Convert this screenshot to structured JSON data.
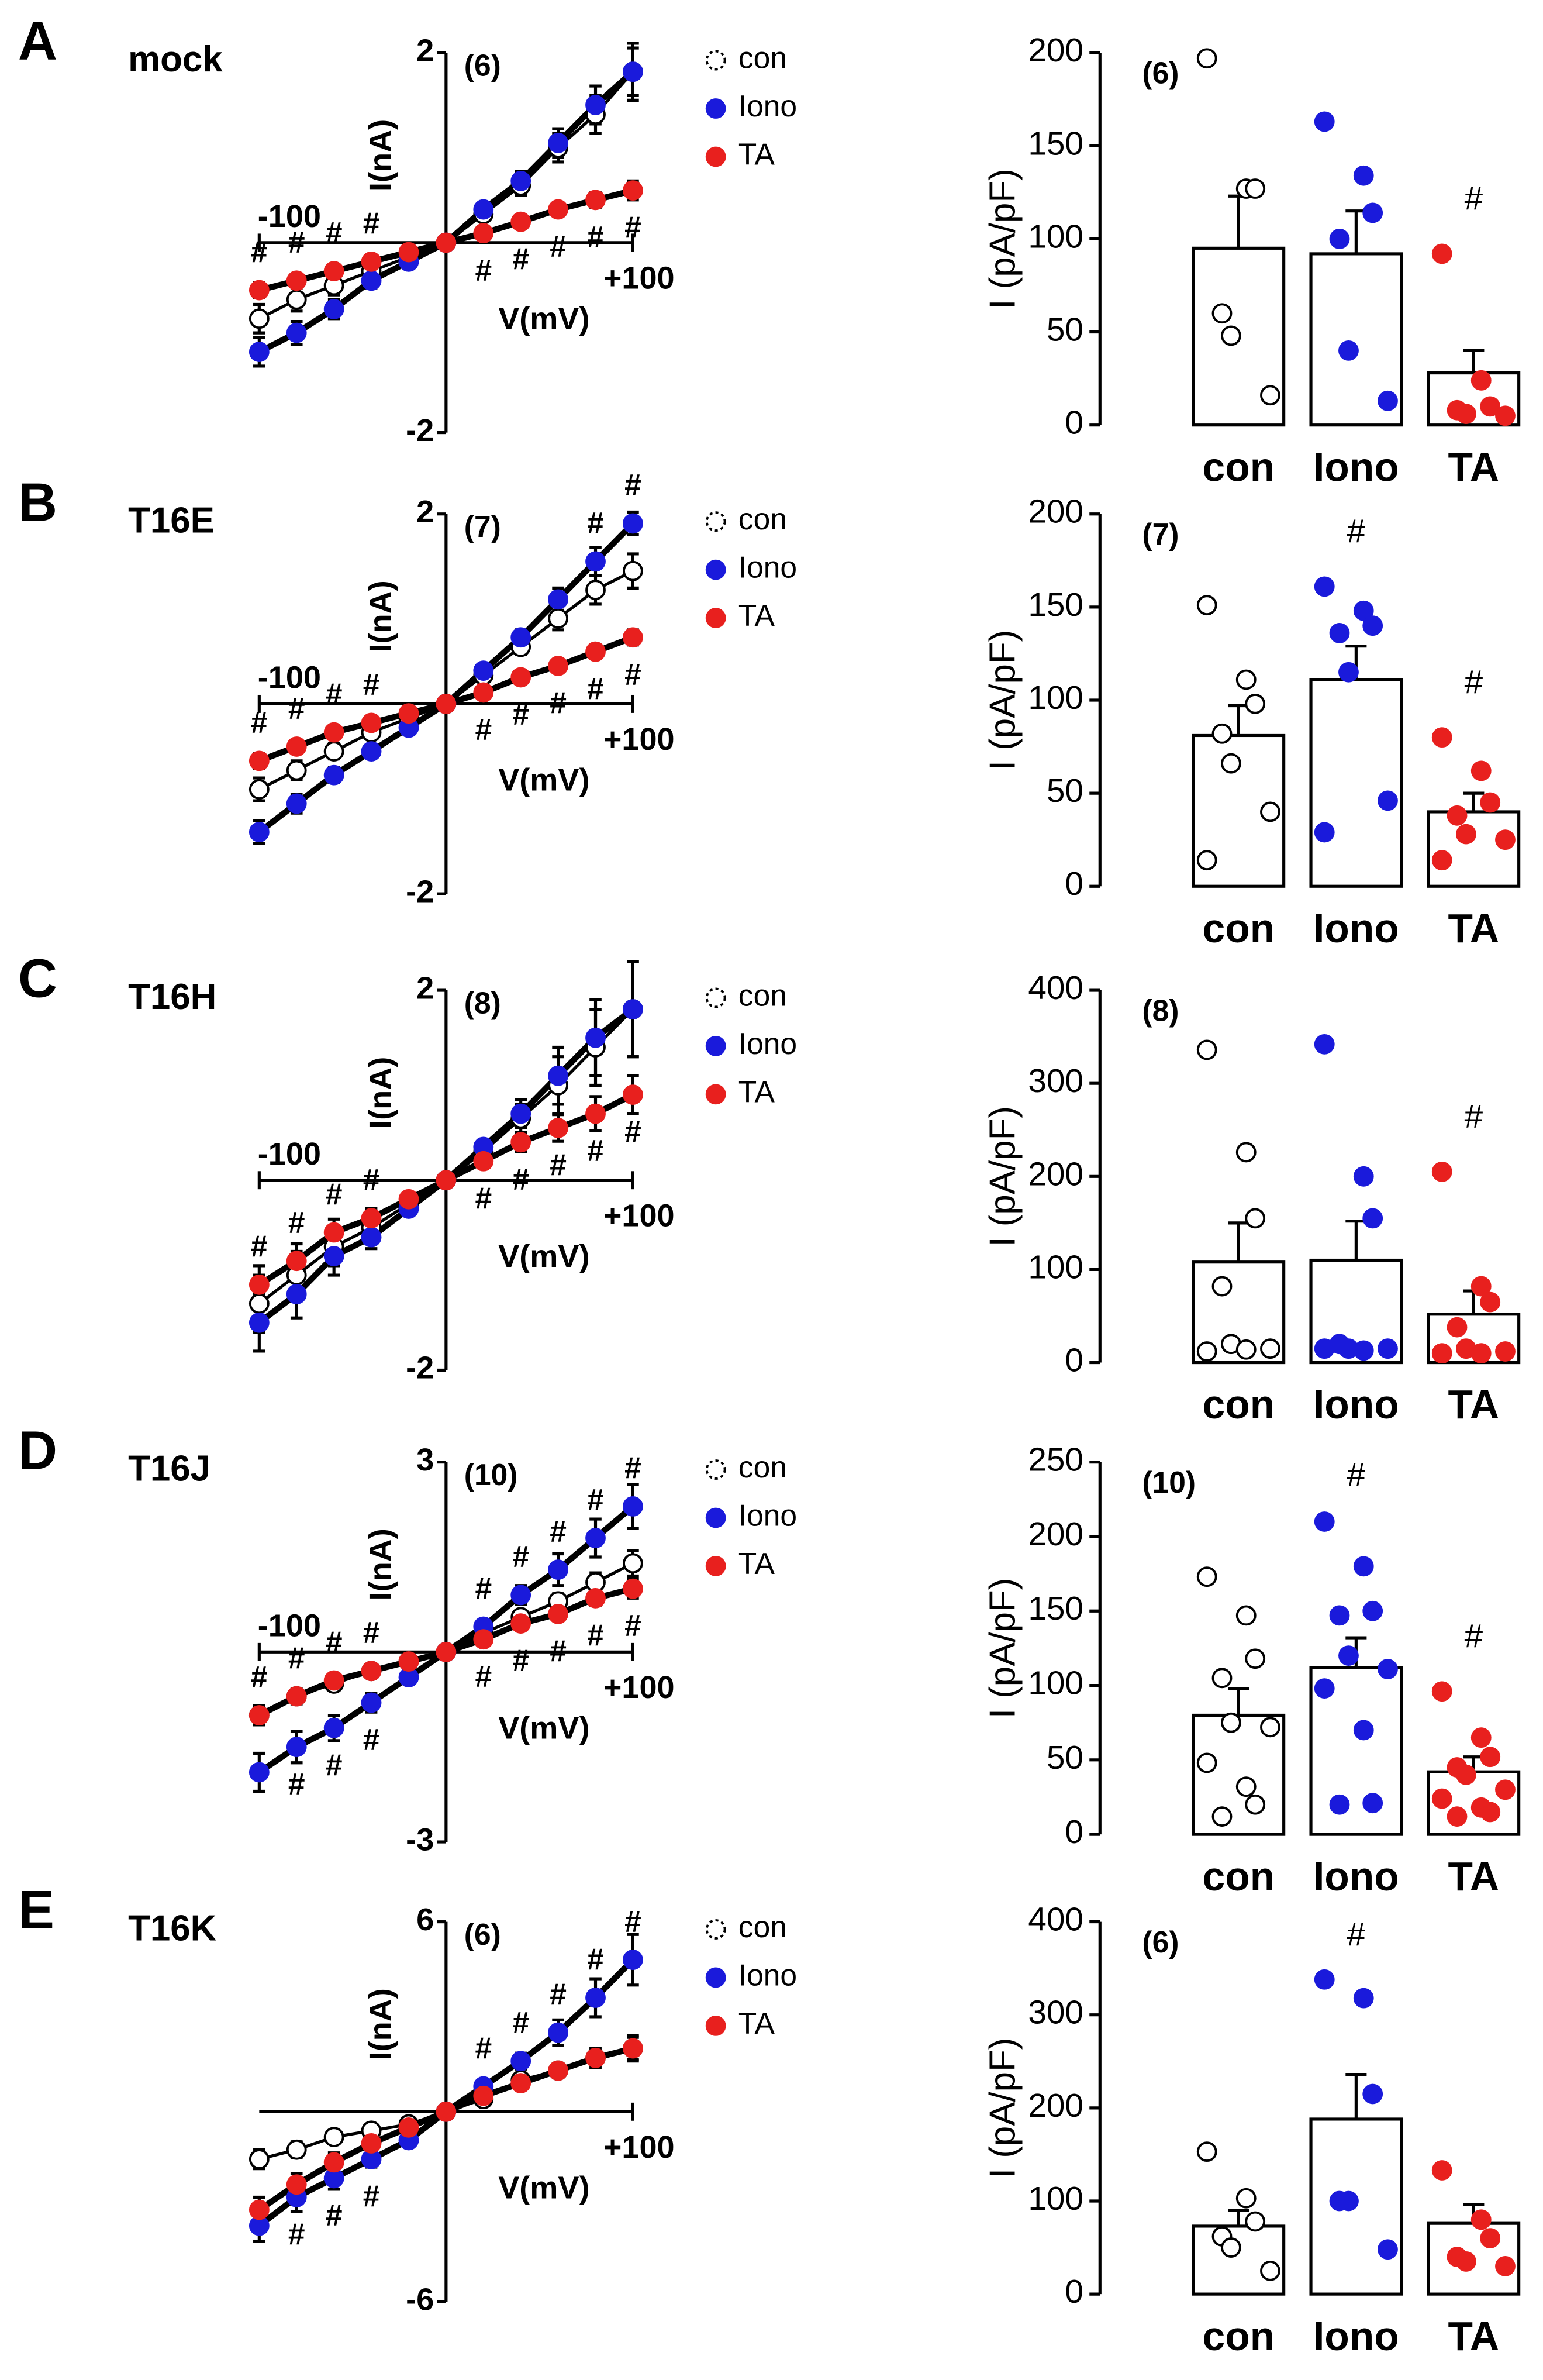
{
  "chart_data": [
    {
      "type": "line",
      "panel": "A",
      "title": "mock",
      "annotation": "(6)",
      "xlabel": "V(mV)",
      "ylabel": "I(nA)",
      "sig_label": "#",
      "x": [
        -100,
        -80,
        -60,
        -40,
        -20,
        0,
        20,
        40,
        60,
        80,
        100
      ],
      "xlim": [
        -100,
        100
      ],
      "xticks": [
        -100,
        {
          "value": 100,
          "label": "+100"
        }
      ],
      "ylim": [
        -2,
        2
      ],
      "yticks": [
        -2,
        2
      ],
      "series": [
        {
          "name": "con",
          "color": "#ffffff",
          "values": [
            -0.8,
            -0.6,
            -0.45,
            -0.3,
            -0.15,
            0,
            0.3,
            0.6,
            1.0,
            1.35,
            1.8
          ],
          "errors": [
            0.15,
            0.12,
            0.1,
            0.08,
            0.05,
            0.03,
            0.06,
            0.1,
            0.15,
            0.2,
            0.3
          ],
          "sig": []
        },
        {
          "name": "Iono",
          "color": "#1a1adb",
          "values": [
            -1.15,
            -0.95,
            -0.7,
            -0.4,
            -0.2,
            0,
            0.35,
            0.65,
            1.05,
            1.45,
            1.8
          ],
          "errors": [
            0.15,
            0.12,
            0.1,
            0.08,
            0.05,
            0.03,
            0.06,
            0.1,
            0.15,
            0.2,
            0.25
          ],
          "sig": []
        },
        {
          "name": "TA",
          "color": "#e8201e",
          "values": [
            -0.5,
            -0.4,
            -0.3,
            -0.2,
            -0.1,
            0,
            0.1,
            0.22,
            0.35,
            0.45,
            0.55
          ],
          "errors": [
            0.08,
            0.07,
            0.06,
            0.05,
            0.04,
            0.03,
            0.04,
            0.05,
            0.07,
            0.08,
            0.1
          ],
          "sig": [
            -100,
            -80,
            -60,
            -40,
            20,
            40,
            60,
            80,
            100
          ]
        }
      ]
    },
    {
      "type": "bar",
      "annotation": "(6)",
      "ylabel": "I (pA/pF)",
      "sig_label": "#",
      "categories": [
        "con",
        "Iono",
        "TA"
      ],
      "colors": [
        "#ffffff",
        "#1a1adb",
        "#e8201e"
      ],
      "values": [
        95,
        92,
        28
      ],
      "errors": [
        28,
        23,
        12
      ],
      "points": [
        [
          197,
          127,
          127,
          60,
          48,
          16
        ],
        [
          163,
          134,
          114,
          100,
          40,
          13
        ],
        [
          92,
          24,
          10,
          8,
          6,
          5
        ]
      ],
      "sig": [
        2
      ],
      "ylim": [
        0,
        200
      ],
      "yticks": [
        0,
        50,
        100,
        150,
        200
      ]
    },
    {
      "type": "line",
      "panel": "B",
      "title": "T16E",
      "annotation": "(7)",
      "xlabel": "V(mV)",
      "ylabel": "I(nA)",
      "sig_label": "#",
      "x": [
        -100,
        -80,
        -60,
        -40,
        -20,
        0,
        20,
        40,
        60,
        80,
        100
      ],
      "xlim": [
        -100,
        100
      ],
      "xticks": [
        -100,
        {
          "value": 100,
          "label": "+100"
        }
      ],
      "ylim": [
        -2,
        2
      ],
      "yticks": [
        -2,
        2
      ],
      "series": [
        {
          "name": "con",
          "color": "#ffffff",
          "values": [
            -0.9,
            -0.7,
            -0.5,
            -0.3,
            -0.15,
            0,
            0.3,
            0.6,
            0.9,
            1.2,
            1.4
          ],
          "errors": [
            0.12,
            0.1,
            0.08,
            0.07,
            0.05,
            0.03,
            0.06,
            0.08,
            0.12,
            0.15,
            0.18
          ],
          "sig": []
        },
        {
          "name": "Iono",
          "color": "#1a1adb",
          "values": [
            -1.35,
            -1.05,
            -0.75,
            -0.5,
            -0.25,
            0,
            0.35,
            0.7,
            1.1,
            1.5,
            1.9
          ],
          "errors": [
            0.12,
            0.1,
            0.08,
            0.07,
            0.05,
            0.03,
            0.06,
            0.08,
            0.12,
            0.15,
            0.12
          ],
          "sig": [
            80,
            100
          ]
        },
        {
          "name": "TA",
          "color": "#e8201e",
          "values": [
            -0.6,
            -0.45,
            -0.3,
            -0.2,
            -0.1,
            0,
            0.12,
            0.28,
            0.4,
            0.55,
            0.7
          ],
          "errors": [
            0.08,
            0.07,
            0.06,
            0.05,
            0.04,
            0.03,
            0.04,
            0.05,
            0.06,
            0.07,
            0.08
          ],
          "sig": [
            -100,
            -80,
            -60,
            -40,
            20,
            40,
            60,
            80,
            100
          ]
        }
      ]
    },
    {
      "type": "bar",
      "annotation": "(7)",
      "ylabel": "I (pA/pF)",
      "sig_label": "#",
      "categories": [
        "con",
        "Iono",
        "TA"
      ],
      "colors": [
        "#ffffff",
        "#1a1adb",
        "#e8201e"
      ],
      "values": [
        81,
        111,
        40
      ],
      "errors": [
        16,
        18,
        10
      ],
      "points": [
        [
          151,
          111,
          98,
          82,
          66,
          40,
          14
        ],
        [
          161,
          148,
          140,
          136,
          115,
          46,
          29
        ],
        [
          80,
          62,
          45,
          38,
          28,
          25,
          14
        ]
      ],
      "sig": [
        1,
        2
      ],
      "ylim": [
        0,
        200
      ],
      "yticks": [
        0,
        50,
        100,
        150,
        200
      ]
    },
    {
      "type": "line",
      "panel": "C",
      "title": "T16H",
      "annotation": "(8)",
      "xlabel": "V(mV)",
      "ylabel": "I(nA)",
      "sig_label": "#",
      "x": [
        -100,
        -80,
        -60,
        -40,
        -20,
        0,
        20,
        40,
        60,
        80,
        100
      ],
      "xlim": [
        -100,
        100
      ],
      "xticks": [
        -100,
        {
          "value": 100,
          "label": "+100"
        }
      ],
      "ylim": [
        -2,
        2
      ],
      "yticks": [
        -2,
        2
      ],
      "series": [
        {
          "name": "con",
          "color": "#ffffff",
          "values": [
            -1.3,
            -1.0,
            -0.7,
            -0.5,
            -0.25,
            0,
            0.3,
            0.65,
            1.0,
            1.4,
            1.8
          ],
          "errors": [
            0.3,
            0.25,
            0.2,
            0.12,
            0.06,
            0.03,
            0.06,
            0.15,
            0.3,
            0.4,
            0.5
          ],
          "sig": []
        },
        {
          "name": "Iono",
          "color": "#1a1adb",
          "values": [
            -1.5,
            -1.2,
            -0.8,
            -0.6,
            -0.3,
            0,
            0.35,
            0.7,
            1.1,
            1.5,
            1.8
          ],
          "errors": [
            0.3,
            0.25,
            0.2,
            0.12,
            0.06,
            0.03,
            0.06,
            0.15,
            0.3,
            0.4,
            0.5
          ],
          "sig": []
        },
        {
          "name": "TA",
          "color": "#e8201e",
          "values": [
            -1.1,
            -0.85,
            -0.55,
            -0.4,
            -0.2,
            0,
            0.2,
            0.4,
            0.55,
            0.7,
            0.9
          ],
          "errors": [
            0.2,
            0.18,
            0.14,
            0.1,
            0.05,
            0.03,
            0.05,
            0.1,
            0.14,
            0.18,
            0.2
          ],
          "sig": [
            -100,
            -80,
            -60,
            -40,
            20,
            40,
            60,
            80,
            100
          ]
        }
      ]
    },
    {
      "type": "bar",
      "annotation": "(8)",
      "ylabel": "I (pA/pF)",
      "sig_label": "#",
      "categories": [
        "con",
        "Iono",
        "TA"
      ],
      "colors": [
        "#ffffff",
        "#1a1adb",
        "#e8201e"
      ],
      "values": [
        108,
        110,
        52
      ],
      "errors": [
        42,
        42,
        25
      ],
      "points": [
        [
          336,
          226,
          155,
          82,
          20,
          15,
          12,
          14
        ],
        [
          342,
          200,
          155,
          20,
          15,
          15,
          15,
          13
        ],
        [
          205,
          82,
          65,
          38,
          15,
          12,
          10,
          10
        ]
      ],
      "sig": [
        2
      ],
      "ylim": [
        0,
        400
      ],
      "yticks": [
        0,
        100,
        200,
        300,
        400
      ]
    },
    {
      "type": "line",
      "panel": "D",
      "title": "T16J",
      "annotation": "(10)",
      "xlabel": "V(mV)",
      "ylabel": "I(nA)",
      "sig_label": "#",
      "x": [
        -100,
        -80,
        -60,
        -40,
        -20,
        0,
        20,
        40,
        60,
        80,
        100
      ],
      "xlim": [
        -100,
        100
      ],
      "xticks": [
        -100,
        {
          "value": 100,
          "label": "+100"
        }
      ],
      "ylim": [
        -3,
        3
      ],
      "yticks": [
        -3,
        3
      ],
      "series": [
        {
          "name": "con",
          "color": "#ffffff",
          "values": [
            -1.0,
            -0.7,
            -0.5,
            -0.3,
            -0.15,
            0,
            0.3,
            0.55,
            0.8,
            1.1,
            1.4
          ],
          "errors": [
            0.15,
            0.12,
            0.1,
            0.08,
            0.05,
            0.03,
            0.06,
            0.1,
            0.12,
            0.15,
            0.2
          ],
          "sig": []
        },
        {
          "name": "Iono",
          "color": "#1a1adb",
          "values": [
            -1.9,
            -1.5,
            -1.2,
            -0.8,
            -0.4,
            0,
            0.4,
            0.9,
            1.3,
            1.8,
            2.3
          ],
          "errors": [
            0.3,
            0.25,
            0.2,
            0.15,
            0.08,
            0.03,
            0.08,
            0.15,
            0.25,
            0.3,
            0.35
          ],
          "sig": [
            -80,
            -60,
            -40,
            20,
            40,
            60,
            80,
            100
          ]
        },
        {
          "name": "TA",
          "color": "#e8201e",
          "values": [
            -1.0,
            -0.7,
            -0.45,
            -0.3,
            -0.15,
            0,
            0.2,
            0.45,
            0.6,
            0.85,
            1.0
          ],
          "errors": [
            0.15,
            0.12,
            0.1,
            0.08,
            0.05,
            0.03,
            0.06,
            0.08,
            0.1,
            0.12,
            0.15
          ],
          "sig": [
            -100,
            -80,
            -60,
            -40,
            20,
            40,
            60,
            80,
            100
          ]
        }
      ]
    },
    {
      "type": "bar",
      "annotation": "(10)",
      "ylabel": "I (pA/pF)",
      "sig_label": "#",
      "categories": [
        "con",
        "Iono",
        "TA"
      ],
      "colors": [
        "#ffffff",
        "#1a1adb",
        "#e8201e"
      ],
      "values": [
        80,
        112,
        42
      ],
      "errors": [
        18,
        20,
        10
      ],
      "points": [
        [
          173,
          147,
          118,
          105,
          75,
          72,
          48,
          32,
          20,
          12
        ],
        [
          210,
          180,
          150,
          147,
          120,
          111,
          98,
          70,
          21,
          20
        ],
        [
          96,
          65,
          52,
          45,
          40,
          30,
          24,
          18,
          15,
          12
        ]
      ],
      "sig": [
        1,
        2
      ],
      "ylim": [
        0,
        250
      ],
      "yticks": [
        0,
        50,
        100,
        150,
        200,
        250
      ]
    },
    {
      "type": "line",
      "panel": "E",
      "title": "T16K",
      "annotation": "(6)",
      "xlabel": "V(mV)",
      "ylabel": "I(nA)",
      "sig_label": "#",
      "x": [
        -100,
        -80,
        -60,
        -40,
        -20,
        0,
        20,
        40,
        60,
        80,
        100
      ],
      "xlim": [
        -100,
        100
      ],
      "xticks": [
        {
          "value": 100,
          "label": "+100"
        }
      ],
      "ylim": [
        -6,
        6
      ],
      "yticks": [
        -6,
        6
      ],
      "series": [
        {
          "name": "con",
          "color": "#ffffff",
          "values": [
            -1.5,
            -1.2,
            -0.8,
            -0.6,
            -0.4,
            0,
            0.4,
            1.0,
            1.3,
            1.7,
            2.0
          ],
          "errors": [
            0.3,
            0.25,
            0.2,
            0.15,
            0.1,
            0.05,
            0.1,
            0.15,
            0.2,
            0.3,
            0.4
          ],
          "sig": []
        },
        {
          "name": "Iono",
          "color": "#1a1adb",
          "values": [
            -3.6,
            -2.7,
            -2.1,
            -1.5,
            -0.9,
            0,
            0.8,
            1.6,
            2.5,
            3.6,
            4.8
          ],
          "errors": [
            0.5,
            0.45,
            0.35,
            0.25,
            0.15,
            0.05,
            0.15,
            0.25,
            0.4,
            0.6,
            0.8
          ],
          "sig": [
            -80,
            -60,
            -40,
            20,
            40,
            60,
            80,
            100
          ]
        },
        {
          "name": "TA",
          "color": "#e8201e",
          "values": [
            -3.1,
            -2.3,
            -1.6,
            -1.0,
            -0.5,
            0,
            0.5,
            0.9,
            1.3,
            1.7,
            2.0
          ],
          "errors": [
            0.4,
            0.35,
            0.3,
            0.2,
            0.1,
            0.05,
            0.1,
            0.15,
            0.2,
            0.3,
            0.35
          ],
          "sig": []
        }
      ]
    },
    {
      "type": "bar",
      "annotation": "(6)",
      "ylabel": "I (pA/pF)",
      "sig_label": "#",
      "categories": [
        "con",
        "Iono",
        "TA"
      ],
      "colors": [
        "#ffffff",
        "#1a1adb",
        "#e8201e"
      ],
      "values": [
        73,
        188,
        76
      ],
      "errors": [
        17,
        48,
        20
      ],
      "points": [
        [
          153,
          103,
          78,
          62,
          50,
          25
        ],
        [
          338,
          318,
          215,
          100,
          100,
          48
        ],
        [
          133,
          80,
          60,
          40,
          35,
          30
        ]
      ],
      "sig": [
        1
      ],
      "ylim": [
        0,
        400
      ],
      "yticks": [
        0,
        100,
        200,
        300,
        400
      ]
    }
  ]
}
